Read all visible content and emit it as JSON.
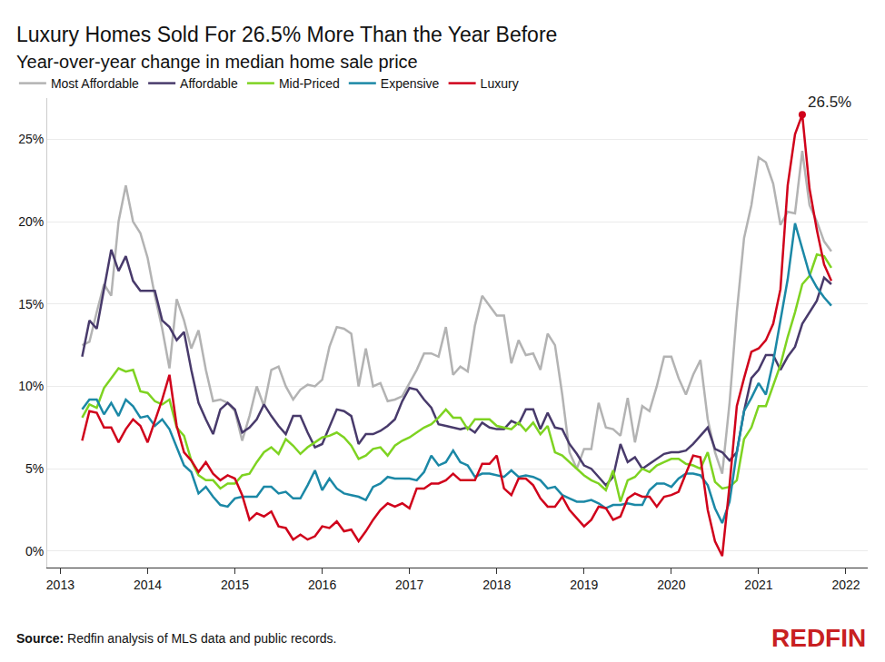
{
  "chart_data": {
    "type": "line",
    "title": "Luxury Homes Sold For 26.5% More Than the Year Before",
    "subtitle": "Year-over-year change in median home sale price",
    "source": "Source: Redfin analysis of MLS data and public records.",
    "logo": "REDFIN",
    "legend": "top",
    "grid": true,
    "xlim": [
      2012.85,
      2022.25
    ],
    "xticks": [
      2013,
      2014,
      2015,
      2016,
      2017,
      2018,
      2019,
      2020,
      2021,
      2022
    ],
    "ylim": [
      -1,
      27.5
    ],
    "yticks": [
      {
        "value": 0,
        "label": "0%"
      },
      {
        "value": 5,
        "label": "5%"
      },
      {
        "value": 10,
        "label": "10%"
      },
      {
        "value": 15,
        "label": "15%"
      },
      {
        "value": 20,
        "label": "20%"
      },
      {
        "value": 25,
        "label": "25%"
      }
    ],
    "annotations": [
      {
        "text": "26.5%",
        "x": 2021.5,
        "y": 26.5
      }
    ],
    "x": [
      2013.25,
      2013.333,
      2013.417,
      2013.5,
      2013.583,
      2013.667,
      2013.75,
      2013.833,
      2013.917,
      2014,
      2014.083,
      2014.167,
      2014.25,
      2014.333,
      2014.417,
      2014.5,
      2014.583,
      2014.667,
      2014.75,
      2014.833,
      2014.917,
      2015,
      2015.083,
      2015.167,
      2015.25,
      2015.333,
      2015.417,
      2015.5,
      2015.583,
      2015.667,
      2015.75,
      2015.833,
      2015.917,
      2016,
      2016.083,
      2016.167,
      2016.25,
      2016.333,
      2016.417,
      2016.5,
      2016.583,
      2016.667,
      2016.75,
      2016.833,
      2016.917,
      2017,
      2017.083,
      2017.167,
      2017.25,
      2017.333,
      2017.417,
      2017.5,
      2017.583,
      2017.667,
      2017.75,
      2017.833,
      2017.917,
      2018,
      2018.083,
      2018.167,
      2018.25,
      2018.333,
      2018.417,
      2018.5,
      2018.583,
      2018.667,
      2018.75,
      2018.833,
      2018.917,
      2019,
      2019.083,
      2019.167,
      2019.25,
      2019.333,
      2019.417,
      2019.5,
      2019.583,
      2019.667,
      2019.75,
      2019.833,
      2019.917,
      2020,
      2020.083,
      2020.167,
      2020.25,
      2020.333,
      2020.417,
      2020.5,
      2020.583,
      2020.667,
      2020.75,
      2020.833,
      2020.917,
      2021,
      2021.083,
      2021.167,
      2021.25,
      2021.333,
      2021.417,
      2021.5,
      2021.583,
      2021.667,
      2021.75,
      2021.833
    ],
    "series": [
      {
        "name": "Most Affordable",
        "color": "#b3b3b3",
        "values": [
          12.5,
          12.7,
          14.5,
          16.2,
          15.5,
          20,
          22.2,
          20,
          19.3,
          17.8,
          15.5,
          13.5,
          11.1,
          15.3,
          14,
          12.3,
          13.4,
          11,
          9.1,
          9.2,
          9,
          8.5,
          6.7,
          8.2,
          10,
          8.8,
          11,
          11.2,
          10,
          9.2,
          9.8,
          10.1,
          10,
          10.4,
          12.4,
          13.6,
          13.5,
          13.2,
          10,
          12.3,
          10,
          10.2,
          9.1,
          9.2,
          9.4,
          10.2,
          11,
          12,
          12,
          11.8,
          13.6,
          10.7,
          11.2,
          10.9,
          13.7,
          15.5,
          14.9,
          14.3,
          14.3,
          11.4,
          12.8,
          11.9,
          12,
          11,
          13.2,
          12.5,
          9.5,
          6,
          5,
          6.2,
          6.2,
          9,
          7.5,
          7.4,
          7,
          9.3,
          6.6,
          8.8,
          8.5,
          10,
          11.8,
          11.8,
          10.5,
          9.5,
          10.7,
          11.6,
          8,
          6,
          4.7,
          9,
          14.5,
          19,
          21,
          23.9,
          23.6,
          22.3,
          19.8,
          20.6,
          20.5,
          24.3,
          21,
          20,
          18.8,
          18.2
        ]
      },
      {
        "name": "Affordable",
        "color": "#483a6b",
        "values": [
          11.8,
          14,
          13.5,
          16,
          18.3,
          17,
          17.9,
          16.4,
          15.8,
          15.8,
          15.8,
          14,
          13.6,
          12.8,
          13.3,
          11,
          9,
          8,
          7.1,
          8.6,
          9,
          8.6,
          7.2,
          7.5,
          8,
          8.9,
          8.2,
          7.6,
          7.1,
          8.2,
          8.2,
          7.2,
          6.3,
          6.5,
          7.5,
          8.6,
          8.5,
          8.2,
          6.5,
          7.1,
          7.1,
          7.3,
          7.6,
          8,
          9.1,
          9.9,
          9.8,
          9.2,
          8.7,
          7.7,
          7.6,
          7.5,
          7.4,
          7.5,
          7.2,
          7.8,
          7.5,
          7.4,
          7.4,
          7.9,
          7.7,
          8.6,
          8.6,
          7.4,
          8.4,
          7.5,
          7.4,
          6.5,
          5.9,
          5.2,
          5,
          4.5,
          4,
          4.5,
          6.5,
          5.4,
          5.7,
          5,
          5.3,
          5.6,
          5.9,
          6,
          6,
          6.1,
          6.5,
          7,
          7.5,
          6.2,
          6,
          5.5,
          6,
          8.5,
          10.5,
          11,
          11.9,
          11.9,
          11,
          11.8,
          12.4,
          13.8,
          14.5,
          15.2,
          16.6,
          16.2
        ]
      },
      {
        "name": "Mid-Priced",
        "color": "#7ed321",
        "values": [
          8.1,
          8.9,
          8.7,
          9.9,
          10.5,
          11.1,
          10.9,
          11,
          9.7,
          9.6,
          9.1,
          8.9,
          9.2,
          7.5,
          7,
          5.5,
          4.6,
          4.3,
          4.3,
          3.8,
          4.1,
          4.1,
          4.6,
          4.7,
          5.4,
          6,
          6.3,
          5.9,
          6.8,
          6.4,
          5.9,
          6.3,
          6.6,
          6.9,
          7,
          7.2,
          6.9,
          6.4,
          5.6,
          5.8,
          6.2,
          6.3,
          5.8,
          6.4,
          6.7,
          6.9,
          7.2,
          7.5,
          7.7,
          8.1,
          8.6,
          8.1,
          8.1,
          7.4,
          8,
          8,
          8,
          7.6,
          7.5,
          7.4,
          7.8,
          7.3,
          7.8,
          7.1,
          7.6,
          6,
          5.8,
          5.4,
          5,
          4.6,
          4.3,
          4.1,
          3.7,
          4.9,
          3,
          4.3,
          4.5,
          5,
          4.8,
          5.2,
          5.4,
          5.6,
          5.6,
          5.3,
          5.2,
          5,
          6,
          4.2,
          3.8,
          3.9,
          4.3,
          6.8,
          7.5,
          8.8,
          8.8,
          10,
          11.3,
          13,
          14.5,
          16.2,
          16.7,
          18,
          17.9,
          17.2
        ]
      },
      {
        "name": "Expensive",
        "color": "#1b88a6",
        "values": [
          8.6,
          9.2,
          9.2,
          8.3,
          9,
          8.2,
          9.2,
          8.8,
          8.1,
          8.2,
          7.6,
          8,
          7.4,
          6.3,
          5.2,
          4.8,
          3.5,
          3.9,
          3.3,
          2.8,
          2.7,
          3.2,
          3.3,
          3.3,
          3.3,
          3.9,
          3.9,
          3.5,
          3.6,
          3.2,
          3.2,
          4,
          4.9,
          3.7,
          4.4,
          3.8,
          3.5,
          3.4,
          3.3,
          3.1,
          3.9,
          4.1,
          4.5,
          4.4,
          4.4,
          4.4,
          4.3,
          4.8,
          5.8,
          5.2,
          5.4,
          6.1,
          5.4,
          5.2,
          4.5,
          4.7,
          4.7,
          4.6,
          4.5,
          4.9,
          4.5,
          4.6,
          4.5,
          4.3,
          3.8,
          3.9,
          3.4,
          3.2,
          3,
          3,
          3.1,
          2.9,
          2.6,
          2.8,
          2.8,
          2.9,
          2.8,
          2.8,
          3.7,
          4.1,
          4.1,
          3.9,
          4.4,
          4.7,
          4.7,
          4.6,
          4,
          2.6,
          1.7,
          3,
          6,
          8.5,
          9.3,
          10.2,
          9.5,
          11.5,
          14,
          16.5,
          19.9,
          18.4,
          16.8,
          16,
          15.4,
          14.9
        ]
      },
      {
        "name": "Luxury",
        "color": "#d0021b",
        "values": [
          6.7,
          8.5,
          8.4,
          7.5,
          7.5,
          6.6,
          7.4,
          8,
          7.6,
          6.6,
          7.9,
          9.2,
          10.7,
          7.6,
          6,
          5.5,
          4.8,
          5.4,
          4.7,
          4.3,
          4.6,
          4.4,
          3.4,
          1.9,
          2.3,
          2.1,
          2.4,
          1.5,
          1.4,
          0.7,
          1,
          0.7,
          0.9,
          1.5,
          1.4,
          1.8,
          1.2,
          1.3,
          0.6,
          1.2,
          1.9,
          2.5,
          2.9,
          2.7,
          2.9,
          2.6,
          3.8,
          3.8,
          4.1,
          4.1,
          4.3,
          4.7,
          4.3,
          4.3,
          4.3,
          5.3,
          5.3,
          5.8,
          3.8,
          3.4,
          4.4,
          4.4,
          4,
          3.2,
          2.7,
          2.7,
          3.3,
          2.5,
          2,
          1.5,
          1.9,
          2.7,
          2.6,
          1.9,
          2.1,
          3.2,
          3.5,
          3.3,
          3.3,
          2.7,
          3.3,
          3.4,
          3.6,
          4.7,
          5.8,
          5.7,
          2.5,
          0.6,
          -0.3,
          4,
          8.8,
          10.5,
          12.1,
          12.3,
          12.8,
          13.8,
          15.9,
          22.2,
          25.3,
          26.5,
          22,
          19.5,
          17.4,
          16.4
        ]
      }
    ]
  }
}
